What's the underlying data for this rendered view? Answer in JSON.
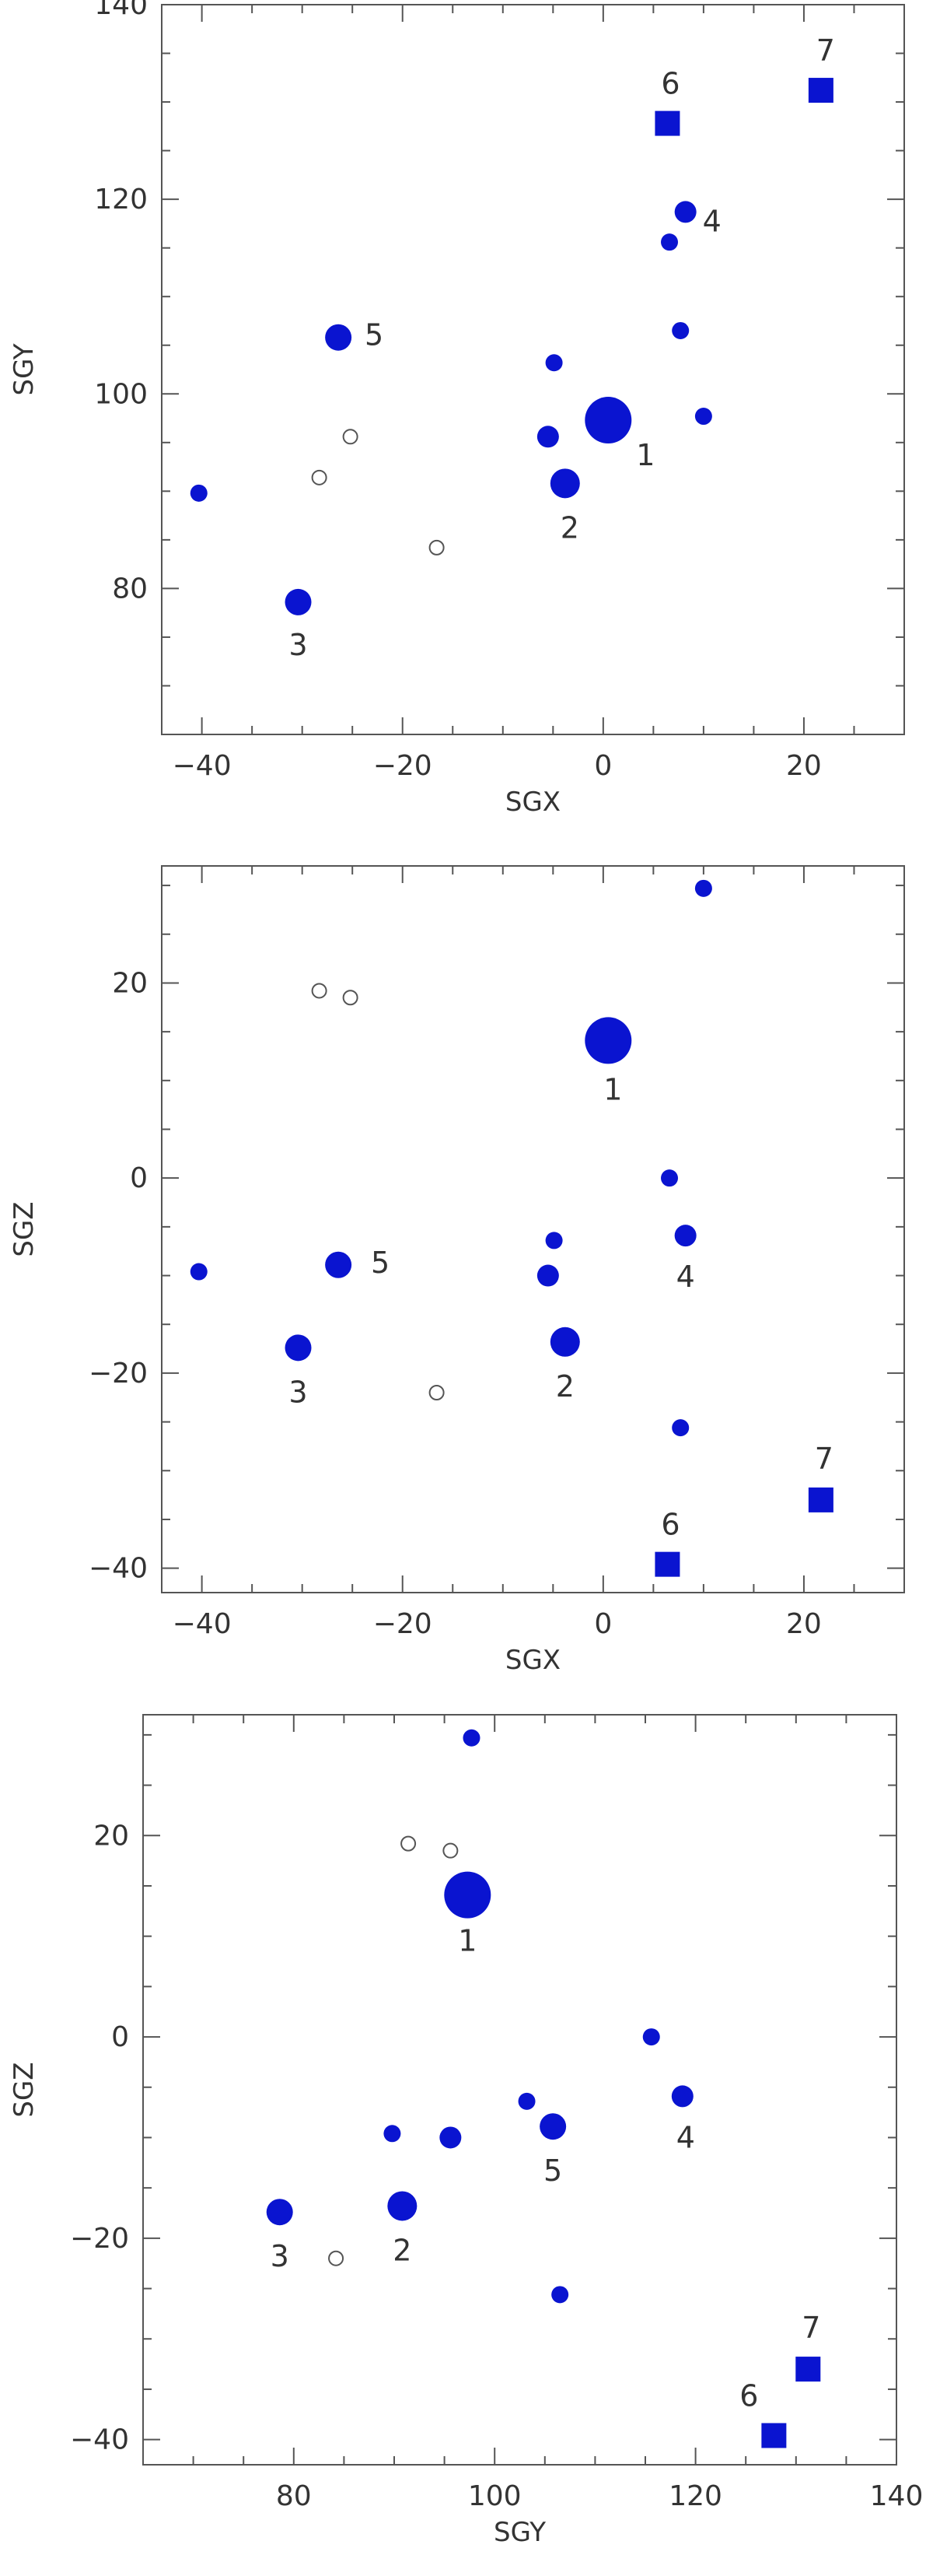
{
  "colors": {
    "marker": "#0a14d0",
    "open_marker": "#555555",
    "frame": "#555555",
    "text": "#333333"
  },
  "chart_data": [
    {
      "type": "scatter",
      "xlabel": "SGX",
      "ylabel": "SGY",
      "xlim": [
        -44,
        30
      ],
      "ylim": [
        65,
        140
      ],
      "xticks": [
        -40,
        -20,
        0,
        20
      ],
      "yticks": [
        80,
        100,
        120,
        140
      ],
      "points": [
        {
          "x": 0.5,
          "y": 97.3,
          "size": "xl",
          "marker": "filled-circle",
          "label": "1"
        },
        {
          "x": -3.8,
          "y": 90.8,
          "size": "l",
          "marker": "filled-circle",
          "label": "2"
        },
        {
          "x": -30.4,
          "y": 78.6,
          "size": "m",
          "marker": "filled-circle",
          "label": "3"
        },
        {
          "x": 8.2,
          "y": 118.7,
          "size": "s",
          "marker": "filled-circle",
          "label": "4"
        },
        {
          "x": -26.4,
          "y": 105.8,
          "size": "m",
          "marker": "filled-circle",
          "label": "5"
        },
        {
          "x": 6.4,
          "y": 127.8,
          "size": "sq",
          "marker": "filled-square",
          "label": "6"
        },
        {
          "x": 21.7,
          "y": 131.2,
          "size": "sq",
          "marker": "filled-square",
          "label": "7"
        },
        {
          "x": 6.6,
          "y": 115.6,
          "size": "xs",
          "marker": "filled-circle",
          "label": ""
        },
        {
          "x": 7.7,
          "y": 106.5,
          "size": "xs",
          "marker": "filled-circle",
          "label": ""
        },
        {
          "x": -4.9,
          "y": 103.2,
          "size": "xs",
          "marker": "filled-circle",
          "label": ""
        },
        {
          "x": -5.5,
          "y": 95.6,
          "size": "s",
          "marker": "filled-circle",
          "label": ""
        },
        {
          "x": 10.0,
          "y": 97.7,
          "size": "xs",
          "marker": "filled-circle",
          "label": ""
        },
        {
          "x": -40.3,
          "y": 89.8,
          "size": "xs",
          "marker": "filled-circle",
          "label": ""
        },
        {
          "x": -25.2,
          "y": 95.6,
          "size": "o",
          "marker": "open-circle",
          "label": ""
        },
        {
          "x": -28.3,
          "y": 91.4,
          "size": "o",
          "marker": "open-circle",
          "label": ""
        },
        {
          "x": -16.6,
          "y": 84.2,
          "size": "o",
          "marker": "open-circle",
          "label": ""
        }
      ]
    },
    {
      "type": "scatter",
      "xlabel": "SGX",
      "ylabel": "SGZ",
      "xlim": [
        -44,
        30
      ],
      "ylim": [
        -42.5,
        32
      ],
      "xticks": [
        -40,
        -20,
        0,
        20
      ],
      "yticks": [
        -40,
        -20,
        0,
        20
      ],
      "points": [
        {
          "x": 0.5,
          "y": 14.1,
          "size": "xl",
          "marker": "filled-circle",
          "label": "1"
        },
        {
          "x": -3.8,
          "y": -16.8,
          "size": "l",
          "marker": "filled-circle",
          "label": "2"
        },
        {
          "x": -30.4,
          "y": -17.4,
          "size": "m",
          "marker": "filled-circle",
          "label": "3"
        },
        {
          "x": 8.2,
          "y": -5.9,
          "size": "s",
          "marker": "filled-circle",
          "label": "4"
        },
        {
          "x": -26.4,
          "y": -8.9,
          "size": "m",
          "marker": "filled-circle",
          "label": "5"
        },
        {
          "x": 6.4,
          "y": -39.6,
          "size": "sq",
          "marker": "filled-square",
          "label": "6"
        },
        {
          "x": 21.7,
          "y": -33.0,
          "size": "sq",
          "marker": "filled-square",
          "label": "7"
        },
        {
          "x": 6.6,
          "y": 0.0,
          "size": "xs",
          "marker": "filled-circle",
          "label": ""
        },
        {
          "x": 7.7,
          "y": -25.6,
          "size": "xs",
          "marker": "filled-circle",
          "label": ""
        },
        {
          "x": -4.9,
          "y": -6.4,
          "size": "xs",
          "marker": "filled-circle",
          "label": ""
        },
        {
          "x": -5.5,
          "y": -10.0,
          "size": "s",
          "marker": "filled-circle",
          "label": ""
        },
        {
          "x": 10.0,
          "y": 29.7,
          "size": "xs",
          "marker": "filled-circle",
          "label": ""
        },
        {
          "x": -40.3,
          "y": -9.6,
          "size": "xs",
          "marker": "filled-circle",
          "label": ""
        },
        {
          "x": -25.2,
          "y": 18.5,
          "size": "o",
          "marker": "open-circle",
          "label": ""
        },
        {
          "x": -28.3,
          "y": 19.2,
          "size": "o",
          "marker": "open-circle",
          "label": ""
        },
        {
          "x": -16.6,
          "y": -22.0,
          "size": "o",
          "marker": "open-circle",
          "label": ""
        }
      ]
    },
    {
      "type": "scatter",
      "xlabel": "SGY",
      "ylabel": "SGZ",
      "xlim": [
        65,
        140
      ],
      "ylim": [
        -42.5,
        32
      ],
      "xticks": [
        80,
        100,
        120,
        140
      ],
      "yticks": [
        -40,
        -20,
        0,
        20
      ],
      "points": [
        {
          "x": 97.3,
          "y": 14.1,
          "size": "xl",
          "marker": "filled-circle",
          "label": "1"
        },
        {
          "x": 90.8,
          "y": -16.8,
          "size": "l",
          "marker": "filled-circle",
          "label": "2"
        },
        {
          "x": 78.6,
          "y": -17.4,
          "size": "m",
          "marker": "filled-circle",
          "label": "3"
        },
        {
          "x": 118.7,
          "y": -5.9,
          "size": "s",
          "marker": "filled-circle",
          "label": "4"
        },
        {
          "x": 105.8,
          "y": -8.9,
          "size": "m",
          "marker": "filled-circle",
          "label": "5"
        },
        {
          "x": 127.8,
          "y": -39.6,
          "size": "sq",
          "marker": "filled-square",
          "label": "6"
        },
        {
          "x": 131.2,
          "y": -33.0,
          "size": "sq",
          "marker": "filled-square",
          "label": "7"
        },
        {
          "x": 115.6,
          "y": 0.0,
          "size": "xs",
          "marker": "filled-circle",
          "label": ""
        },
        {
          "x": 106.5,
          "y": -25.6,
          "size": "xs",
          "marker": "filled-circle",
          "label": ""
        },
        {
          "x": 103.2,
          "y": -6.4,
          "size": "xs",
          "marker": "filled-circle",
          "label": ""
        },
        {
          "x": 95.6,
          "y": -10.0,
          "size": "s",
          "marker": "filled-circle",
          "label": ""
        },
        {
          "x": 97.7,
          "y": 29.7,
          "size": "xs",
          "marker": "filled-circle",
          "label": ""
        },
        {
          "x": 89.8,
          "y": -9.6,
          "size": "xs",
          "marker": "filled-circle",
          "label": ""
        },
        {
          "x": 95.6,
          "y": 18.5,
          "size": "o",
          "marker": "open-circle",
          "label": ""
        },
        {
          "x": 91.4,
          "y": 19.2,
          "size": "o",
          "marker": "open-circle",
          "label": ""
        },
        {
          "x": 84.2,
          "y": -22.0,
          "size": "o",
          "marker": "open-circle",
          "label": ""
        }
      ]
    }
  ]
}
